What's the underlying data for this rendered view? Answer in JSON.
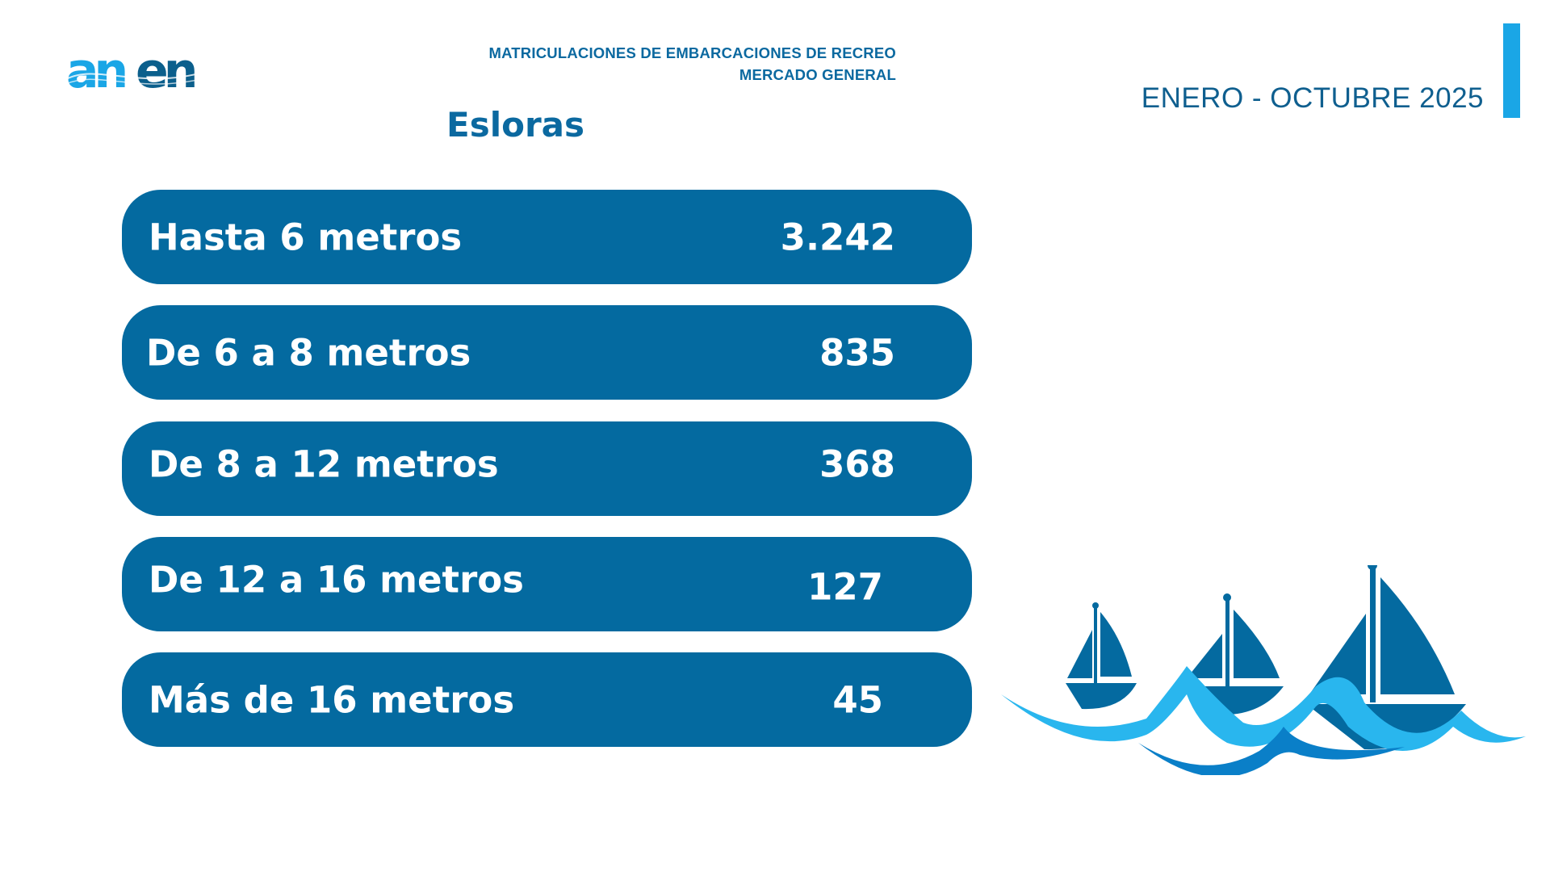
{
  "logo": {
    "text": "anen"
  },
  "header": {
    "line1": "MATRICULACIONES DE EMBARCACIONES DE RECREO",
    "line2": "MERCADO GENERAL",
    "subtitle": "Esloras",
    "period": "ENERO - OCTUBRE 2025"
  },
  "colors": {
    "pill": "#046aa0",
    "accent": "#1aa6e6",
    "title": "#0b69a0",
    "wave_light": "#29b6ee",
    "wave_dark": "#0a7fc8"
  },
  "rows": [
    {
      "label": "Hasta 6 metros",
      "value": "3.242"
    },
    {
      "label": "De 6 a 8 metros",
      "value": "835"
    },
    {
      "label": "De 8 a 12 metros",
      "value": "368"
    },
    {
      "label": "De 12 a 16 metros",
      "value": "127"
    },
    {
      "label": "Más de 16 metros",
      "value": "45"
    }
  ],
  "illustration": {
    "icon": "sailboats-on-waves-icon"
  }
}
